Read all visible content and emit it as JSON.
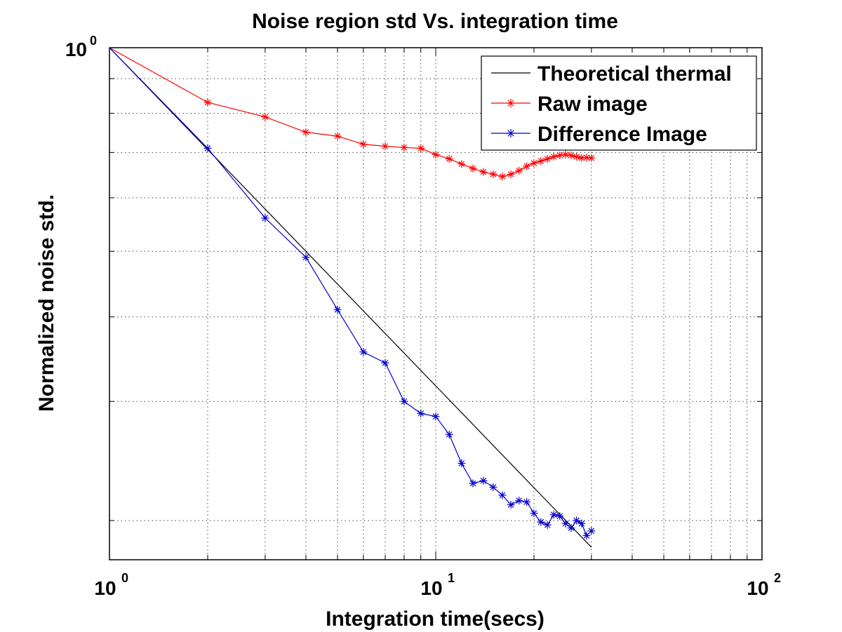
{
  "chart_data": {
    "type": "line",
    "title": "Noise region std Vs. integration time",
    "xlabel": "Integration time(secs)",
    "ylabel": "Normalized noise std.",
    "x_scale": "log",
    "y_scale": "log",
    "xlim": [
      1,
      100
    ],
    "ylim": [
      0.175,
      1
    ],
    "x_ticks": [
      {
        "value": 1,
        "base": "10",
        "exp": "0"
      },
      {
        "value": 10,
        "base": "10",
        "exp": "1"
      },
      {
        "value": 100,
        "base": "10",
        "exp": "2"
      }
    ],
    "y_ticks": [
      {
        "value": 1,
        "base": "10",
        "exp": "0"
      }
    ],
    "grid": true,
    "legend_position": "top-right",
    "series": [
      {
        "name": "Theoretical thermal",
        "color": "#000000",
        "marker": "none",
        "x": [
          1,
          30
        ],
        "y": [
          1.0,
          0.1826
        ]
      },
      {
        "name": "Raw image",
        "color": "#ff0000",
        "marker": "asterisk",
        "x": [
          1,
          2,
          3,
          4,
          5,
          6,
          7,
          8,
          9,
          10,
          11,
          12,
          13,
          14,
          15,
          16,
          17,
          18,
          19,
          20,
          21,
          22,
          23,
          24,
          25,
          26,
          27,
          28,
          29,
          30
        ],
        "y": [
          1.0,
          0.83,
          0.79,
          0.75,
          0.74,
          0.72,
          0.715,
          0.712,
          0.71,
          0.695,
          0.685,
          0.673,
          0.663,
          0.655,
          0.65,
          0.645,
          0.65,
          0.658,
          0.668,
          0.675,
          0.68,
          0.685,
          0.69,
          0.693,
          0.695,
          0.693,
          0.69,
          0.687,
          0.688,
          0.687
        ]
      },
      {
        "name": "Difference Image",
        "color": "#0000cc",
        "marker": "asterisk",
        "x": [
          1,
          2,
          3,
          4,
          5,
          6,
          7,
          8,
          9,
          10,
          11,
          12,
          13,
          14,
          15,
          16,
          17,
          18,
          19,
          20,
          21,
          22,
          23,
          24,
          25,
          26,
          27,
          28,
          29,
          30
        ],
        "y": [
          1.0,
          0.71,
          0.56,
          0.49,
          0.41,
          0.355,
          0.342,
          0.3,
          0.288,
          0.285,
          0.268,
          0.243,
          0.227,
          0.229,
          0.224,
          0.218,
          0.211,
          0.214,
          0.213,
          0.205,
          0.199,
          0.197,
          0.204,
          0.203,
          0.198,
          0.195,
          0.2,
          0.198,
          0.19,
          0.193
        ]
      }
    ]
  }
}
